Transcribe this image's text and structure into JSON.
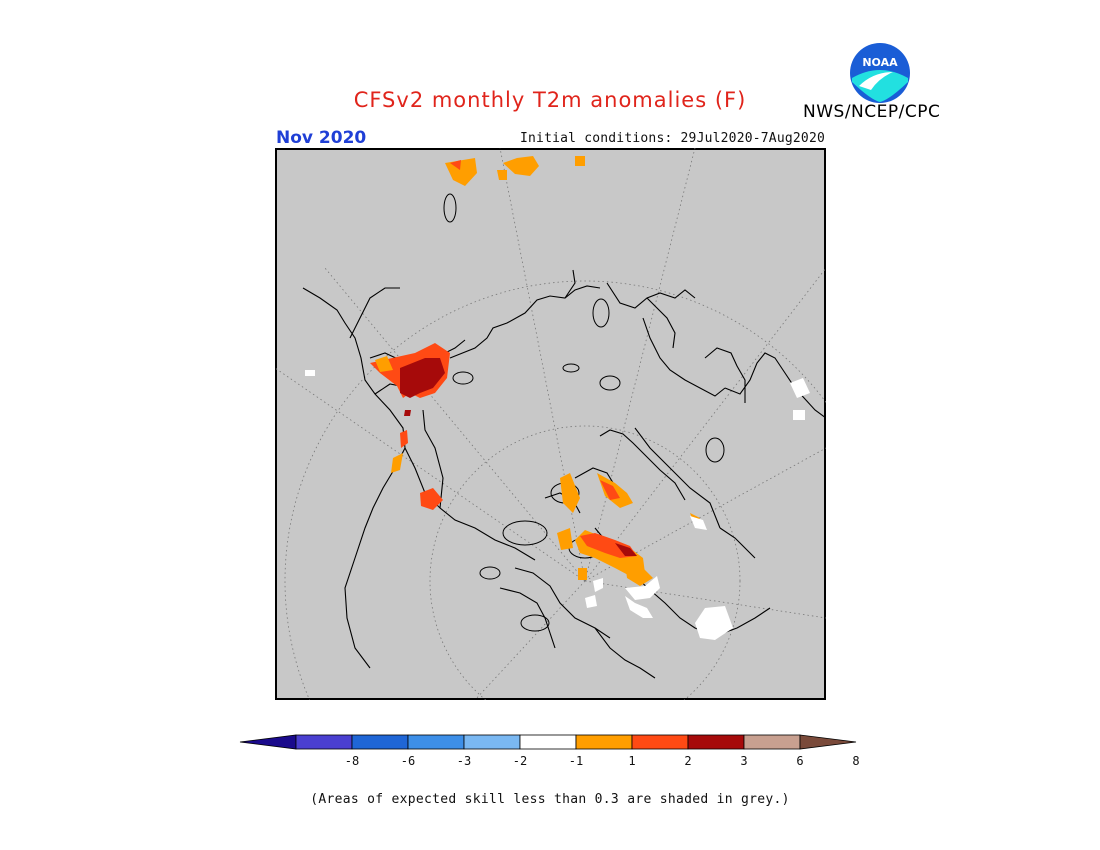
{
  "title": "CFSv2 monthly T2m anomalies (F)",
  "forecast_month": "Nov 2020",
  "initial_conditions": "Initial conditions: 29Jul2020-7Aug2020",
  "agency": "NWS/NCEP/CPC",
  "logo_text": "NOAA",
  "footnote": "(Areas of expected skill less than 0.3 are shaded in grey.)",
  "legend": {
    "colors": [
      "#1a0a8c",
      "#4a3fd0",
      "#1f66d6",
      "#3d8fe8",
      "#7ab8f2",
      "#ffffff",
      "#ff9e00",
      "#ff4a14",
      "#a60a0a",
      "#c8a090",
      "#7a4a3a"
    ],
    "labels": [
      "-8",
      "-6",
      "-3",
      "-2",
      "-1",
      "1",
      "2",
      "3",
      "6",
      "8"
    ]
  },
  "map": {
    "ocean_color": "#c8c8c8",
    "projection": "north-polar-stereographic"
  }
}
